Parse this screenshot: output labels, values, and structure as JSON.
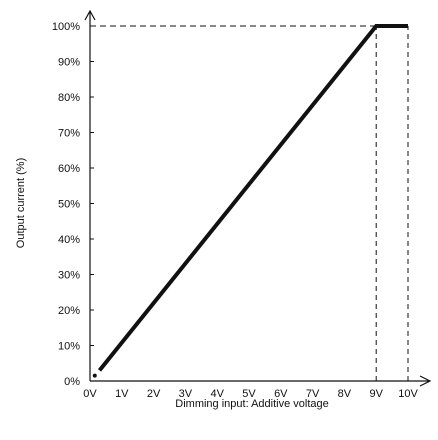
{
  "chart_data": {
    "type": "line",
    "xlabel": "Dimming input: Additive voltage",
    "ylabel": "Output current (%)",
    "x_ticks": [
      "0V",
      "1V",
      "2V",
      "3V",
      "4V",
      "5V",
      "6V",
      "7V",
      "8V",
      "9V",
      "10V"
    ],
    "y_ticks": [
      "0%",
      "10%",
      "20%",
      "30%",
      "40%",
      "50%",
      "60%",
      "70%",
      "80%",
      "90%",
      "100%"
    ],
    "xlim": [
      0,
      10
    ],
    "ylim": [
      0,
      100
    ],
    "grid": false,
    "series": [
      {
        "x": [
          0.3,
          9,
          10
        ],
        "y": [
          3,
          100,
          100
        ],
        "style": "solid-thick"
      }
    ],
    "start_marker": {
      "x": 0.15,
      "y": 1.5
    },
    "reference_lines": [
      {
        "orientation": "horizontal",
        "y": 100,
        "x_from": 0,
        "x_to": 9,
        "style": "dashed"
      },
      {
        "orientation": "vertical",
        "x": 9,
        "y_from": 0,
        "y_to": 100,
        "style": "dashed"
      },
      {
        "orientation": "vertical",
        "x": 10,
        "y_from": 0,
        "y_to": 100,
        "style": "dashed"
      }
    ],
    "colors": {
      "line": "#111111",
      "axis": "#111111",
      "text": "#111111"
    }
  }
}
